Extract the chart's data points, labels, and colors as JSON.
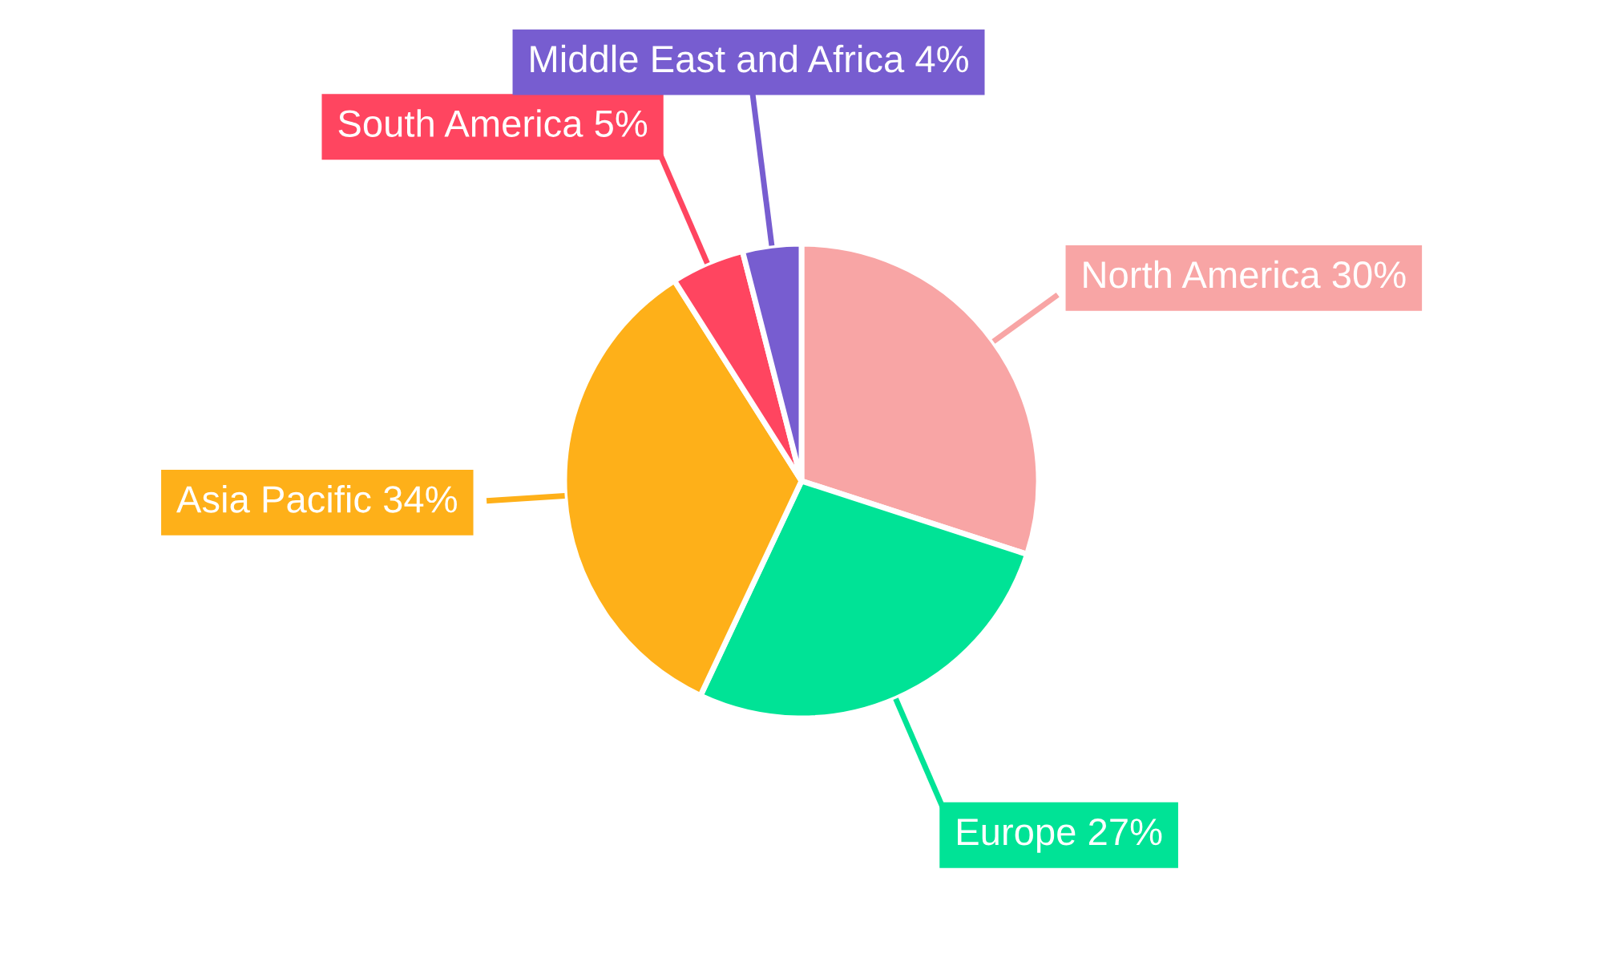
{
  "chart_data": {
    "type": "pie",
    "categories": [
      "North America",
      "Europe",
      "Asia Pacific",
      "South America",
      "Middle East and Africa"
    ],
    "values": [
      30,
      27,
      34,
      5,
      4
    ],
    "value_labels": [
      "30%",
      "27%",
      "34%",
      "5%",
      "4%"
    ],
    "colors": [
      "#f8a5a5",
      "#00e396",
      "#feb019",
      "#ff4560",
      "#775dd0"
    ]
  }
}
